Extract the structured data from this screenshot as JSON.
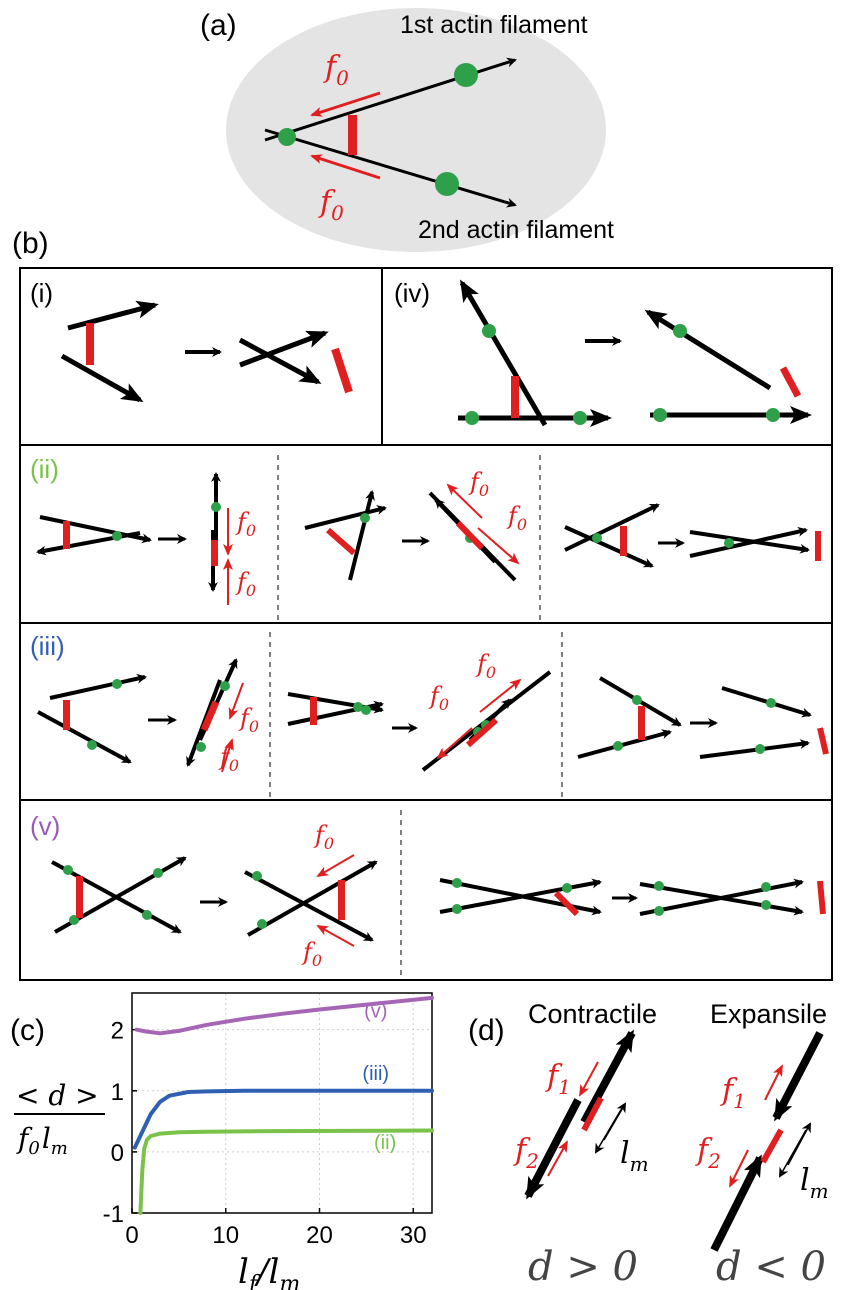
{
  "panel_a": {
    "label": "(a)",
    "filament1": "1st actin filament",
    "filament2": "2nd actin filament",
    "force_symbol": "f",
    "force_sub": "0"
  },
  "panel_b": {
    "label": "(b)",
    "row_labels": {
      "i": "(i)",
      "iv": "(iv)",
      "ii": "(ii)",
      "iii": "(iii)",
      "v": "(v)"
    },
    "row_label_colors": {
      "ii": "#7cc24a",
      "iii": "#2f5fb0",
      "v": "#9b59b6"
    }
  },
  "panel_c": {
    "label": "(c)",
    "ylabel_num": "< d >",
    "ylabel_den_f": "f",
    "ylabel_den_sub": "0",
    "ylabel_den_l": "l",
    "ylabel_den_lsub": "m",
    "xlabel_num": "l",
    "xlabel_num_sub": "f",
    "xlabel_den": "/l",
    "xlabel_den_sub": "m",
    "yticks": [
      "2",
      "1",
      "0",
      "-1"
    ],
    "xticks": [
      "0",
      "10",
      "20",
      "30"
    ],
    "curve_labels": {
      "v": "(v)",
      "iii": "(iii)",
      "ii": "(ii)"
    }
  },
  "chart_data": {
    "type": "line",
    "xlabel": "l_f/l_m",
    "ylabel": "<d>/(f_0 l_m)",
    "xlim": [
      0,
      32
    ],
    "ylim": [
      -1,
      2.6
    ],
    "grid": true,
    "series": [
      {
        "name": "(v)",
        "color": "#a566b5",
        "x": [
          0.5,
          1.5,
          3,
          5,
          8,
          12,
          16,
          20,
          25,
          32
        ],
        "y": [
          2.0,
          1.97,
          1.94,
          1.98,
          2.08,
          2.18,
          2.26,
          2.33,
          2.41,
          2.52
        ]
      },
      {
        "name": "(iii)",
        "color": "#2f5fb0",
        "x": [
          0.3,
          1,
          2,
          3,
          4,
          6,
          8,
          12,
          20,
          32
        ],
        "y": [
          0.07,
          0.3,
          0.62,
          0.82,
          0.92,
          0.98,
          0.99,
          1.0,
          1.0,
          1.0
        ]
      },
      {
        "name": "(ii)",
        "color": "#7cc24a",
        "x": [
          0.9,
          1.1,
          1.3,
          1.6,
          2,
          3,
          5,
          8,
          15,
          32
        ],
        "y": [
          -1.0,
          -0.3,
          0.05,
          0.2,
          0.26,
          0.3,
          0.32,
          0.33,
          0.34,
          0.35
        ]
      }
    ]
  },
  "panel_d": {
    "label": "(d)",
    "contractile": "Contractile",
    "expansile": "Expansile",
    "f1": "f",
    "f1_sub": "1",
    "f2": "f",
    "f2_sub": "2",
    "lm": "l",
    "lm_sub": "m",
    "d_contractile": "d > 0",
    "d_expansile": "d < 0"
  }
}
